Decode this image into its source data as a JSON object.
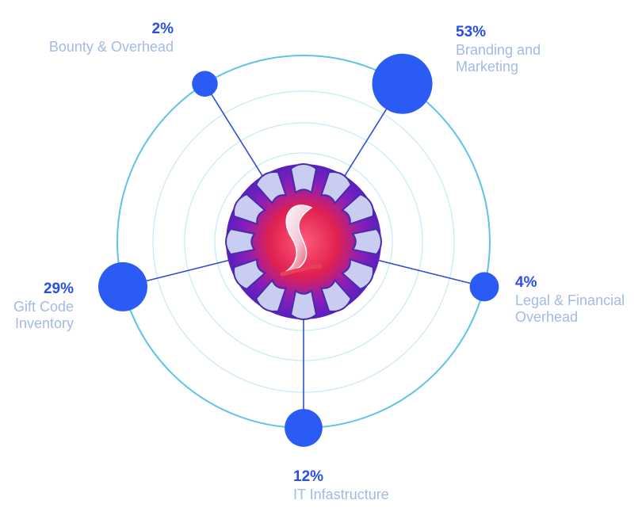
{
  "chart_data": {
    "type": "pie",
    "title": "",
    "slices": [
      {
        "label": "Branding and Marketing",
        "label_lines": [
          "Branding and",
          "Marketing"
        ],
        "value": 53,
        "value_label": "53%"
      },
      {
        "label": "Legal & Financial Overhead",
        "label_lines": [
          "Legal & Financial",
          "Overhead"
        ],
        "value": 4,
        "value_label": "4%"
      },
      {
        "label": "IT Infastructure",
        "label_lines": [
          "IT Infastructure"
        ],
        "value": 12,
        "value_label": "12%"
      },
      {
        "label": "Gift Code Inventory",
        "label_lines": [
          "Gift Code",
          "Inventory"
        ],
        "value": 29,
        "value_label": "29%"
      },
      {
        "label": "Bounty & Overhead",
        "label_lines": [
          "Bounty & Overhead"
        ],
        "value": 2,
        "value_label": "2%"
      }
    ],
    "colors": {
      "node": "#2a5bf5",
      "connector": "#2f4fd6",
      "outer_ring": "#5cc3ea",
      "inner_rings": "#c7e9f6",
      "value_text": "#2a4ee6",
      "label_text": "#a5b9e6",
      "logo_outer": "#5a1fbf",
      "logo_inner": "#e02050",
      "logo_ribbon": "#c9cdf2"
    },
    "center_icon": "ribbon-s-logo-icon"
  }
}
